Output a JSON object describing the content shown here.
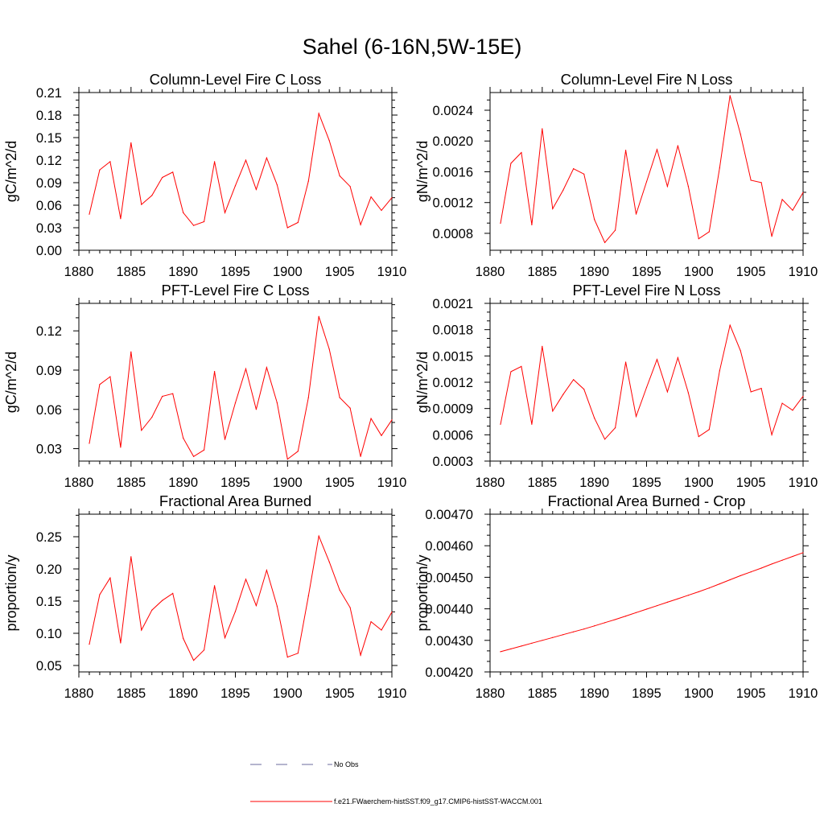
{
  "figure_title": "Sahel (6-16N,5W-15E)",
  "legend": [
    {
      "label": "No Obs",
      "color": "#6b6b9e",
      "style": "dashed"
    },
    {
      "label": "f.e21.FWaerchem-histSST.f09_g17.CMIP6-histSST-WACCM.001",
      "color": "#ff0000",
      "style": "solid"
    }
  ],
  "chart_data": [
    {
      "type": "line",
      "title": "Column-Level Fire C Loss",
      "ylabel": "gC/m^2/d",
      "xlim": [
        1880,
        1910
      ],
      "ylim": [
        0,
        0.21
      ],
      "xticks": [
        1880,
        1885,
        1890,
        1895,
        1900,
        1905,
        1910
      ],
      "yticks": [
        "0.00",
        "0.03",
        "0.06",
        "0.09",
        "0.12",
        "0.15",
        "0.18",
        "0.21"
      ],
      "x": [
        1881,
        1882,
        1883,
        1884,
        1885,
        1886,
        1887,
        1888,
        1889,
        1890,
        1891,
        1892,
        1893,
        1894,
        1895,
        1896,
        1897,
        1898,
        1899,
        1900,
        1901,
        1902,
        1903,
        1904,
        1905,
        1906,
        1907,
        1908,
        1909,
        1910
      ],
      "series": [
        {
          "color": "#ff0000",
          "values": [
            0.048,
            0.107,
            0.118,
            0.042,
            0.143,
            0.061,
            0.073,
            0.097,
            0.104,
            0.05,
            0.033,
            0.038,
            0.118,
            0.05,
            0.086,
            0.12,
            0.081,
            0.123,
            0.087,
            0.03,
            0.037,
            0.092,
            0.182,
            0.146,
            0.099,
            0.085,
            0.034,
            0.071,
            0.053,
            0.07
          ]
        }
      ]
    },
    {
      "type": "line",
      "title": "Column-Level Fire N Loss",
      "ylabel": "gN/m^2/d",
      "xlim": [
        1880,
        1910
      ],
      "ylim": [
        0.00058,
        0.00263
      ],
      "xticks": [
        1880,
        1885,
        1890,
        1895,
        1900,
        1905,
        1910
      ],
      "yticks": [
        "0.0008",
        "0.0012",
        "0.0016",
        "0.0020",
        "0.0024"
      ],
      "x": [
        1881,
        1882,
        1883,
        1884,
        1885,
        1886,
        1887,
        1888,
        1889,
        1890,
        1891,
        1892,
        1893,
        1894,
        1895,
        1896,
        1897,
        1898,
        1899,
        1900,
        1901,
        1902,
        1903,
        1904,
        1905,
        1906,
        1907,
        1908,
        1909,
        1910
      ],
      "series": [
        {
          "color": "#ff0000",
          "values": [
            0.00093,
            0.00171,
            0.00185,
            0.00091,
            0.00216,
            0.00112,
            0.00136,
            0.00164,
            0.00157,
            0.00098,
            0.00068,
            0.00084,
            0.00188,
            0.00105,
            0.00147,
            0.00189,
            0.00141,
            0.00194,
            0.00141,
            0.00073,
            0.00082,
            0.00165,
            0.00259,
            0.00209,
            0.00149,
            0.00146,
            0.00076,
            0.00124,
            0.0011,
            0.00133
          ]
        }
      ]
    },
    {
      "type": "line",
      "title": "PFT-Level Fire C Loss",
      "ylabel": "gC/m^2/d",
      "xlim": [
        1880,
        1910
      ],
      "ylim": [
        0.0205,
        0.141
      ],
      "xticks": [
        1880,
        1885,
        1890,
        1895,
        1900,
        1905,
        1910
      ],
      "yticks": [
        "0.03",
        "0.06",
        "0.09",
        "0.12"
      ],
      "x": [
        1881,
        1882,
        1883,
        1884,
        1885,
        1886,
        1887,
        1888,
        1889,
        1890,
        1891,
        1892,
        1893,
        1894,
        1895,
        1896,
        1897,
        1898,
        1899,
        1900,
        1901,
        1902,
        1903,
        1904,
        1905,
        1906,
        1907,
        1908,
        1909,
        1910
      ],
      "series": [
        {
          "color": "#ff0000",
          "values": [
            0.034,
            0.079,
            0.085,
            0.031,
            0.104,
            0.044,
            0.054,
            0.07,
            0.072,
            0.038,
            0.024,
            0.029,
            0.089,
            0.037,
            0.065,
            0.091,
            0.06,
            0.092,
            0.065,
            0.022,
            0.028,
            0.069,
            0.131,
            0.106,
            0.069,
            0.061,
            0.024,
            0.053,
            0.04,
            0.052
          ]
        }
      ]
    },
    {
      "type": "line",
      "title": "PFT-Level Fire N Loss",
      "ylabel": "gN/m^2/d",
      "xlim": [
        1880,
        1910
      ],
      "ylim": [
        0.0003,
        0.0021
      ],
      "xticks": [
        1880,
        1885,
        1890,
        1895,
        1900,
        1905,
        1910
      ],
      "yticks": [
        "0.0003",
        "0.0006",
        "0.0009",
        "0.0012",
        "0.0015",
        "0.0018",
        "0.0021"
      ],
      "x": [
        1881,
        1882,
        1883,
        1884,
        1885,
        1886,
        1887,
        1888,
        1889,
        1890,
        1891,
        1892,
        1893,
        1894,
        1895,
        1896,
        1897,
        1898,
        1899,
        1900,
        1901,
        1902,
        1903,
        1904,
        1905,
        1906,
        1907,
        1908,
        1909,
        1910
      ],
      "series": [
        {
          "color": "#ff0000",
          "values": [
            0.00072,
            0.00132,
            0.00138,
            0.00072,
            0.00161,
            0.00087,
            0.00106,
            0.00123,
            0.00112,
            0.00079,
            0.00055,
            0.00068,
            0.00143,
            0.00081,
            0.00114,
            0.00146,
            0.00109,
            0.00148,
            0.00108,
            0.00058,
            0.00066,
            0.00133,
            0.00185,
            0.00156,
            0.00109,
            0.00113,
            0.0006,
            0.00096,
            0.00088,
            0.00104
          ]
        }
      ]
    },
    {
      "type": "line",
      "title": "Fractional Area Burned",
      "ylabel": "proportion/y",
      "xlim": [
        1880,
        1910
      ],
      "ylim": [
        0.04,
        0.285
      ],
      "xticks": [
        1880,
        1885,
        1890,
        1895,
        1900,
        1905,
        1910
      ],
      "yticks": [
        "0.05",
        "0.10",
        "0.15",
        "0.20",
        "0.25"
      ],
      "x": [
        1881,
        1882,
        1883,
        1884,
        1885,
        1886,
        1887,
        1888,
        1889,
        1890,
        1891,
        1892,
        1893,
        1894,
        1895,
        1896,
        1897,
        1898,
        1899,
        1900,
        1901,
        1902,
        1903,
        1904,
        1905,
        1906,
        1907,
        1908,
        1909,
        1910
      ],
      "series": [
        {
          "color": "#ff0000",
          "values": [
            0.083,
            0.16,
            0.186,
            0.085,
            0.219,
            0.105,
            0.136,
            0.151,
            0.162,
            0.092,
            0.058,
            0.074,
            0.174,
            0.093,
            0.134,
            0.184,
            0.143,
            0.198,
            0.142,
            0.063,
            0.069,
            0.158,
            0.251,
            0.211,
            0.167,
            0.14,
            0.066,
            0.118,
            0.105,
            0.133
          ]
        }
      ]
    },
    {
      "type": "line",
      "title": "Fractional Area Burned - Crop",
      "ylabel": "proportion/y",
      "xlim": [
        1880,
        1910
      ],
      "ylim": [
        0.0042,
        0.0047
      ],
      "xticks": [
        1880,
        1885,
        1890,
        1895,
        1900,
        1905,
        1910
      ],
      "yticks": [
        "0.00420",
        "0.00430",
        "0.00440",
        "0.00450",
        "0.00460",
        "0.00470"
      ],
      "x": [
        1881,
        1882,
        1883,
        1884,
        1885,
        1886,
        1887,
        1888,
        1889,
        1890,
        1891,
        1892,
        1893,
        1894,
        1895,
        1896,
        1897,
        1898,
        1899,
        1900,
        1901,
        1902,
        1903,
        1904,
        1905,
        1906,
        1907,
        1908,
        1909,
        1910
      ],
      "series": [
        {
          "color": "#ff0000",
          "values": [
            0.004264,
            0.004273,
            0.004282,
            0.004291,
            0.0043,
            0.004309,
            0.004318,
            0.004327,
            0.004336,
            0.004346,
            0.004356,
            0.004366,
            0.004377,
            0.004388,
            0.004399,
            0.00441,
            0.004421,
            0.004432,
            0.004443,
            0.004454,
            0.004466,
            0.004479,
            0.004492,
            0.004505,
            0.004517,
            0.004529,
            0.004542,
            0.004554,
            0.004566,
            0.004578
          ]
        }
      ]
    }
  ]
}
